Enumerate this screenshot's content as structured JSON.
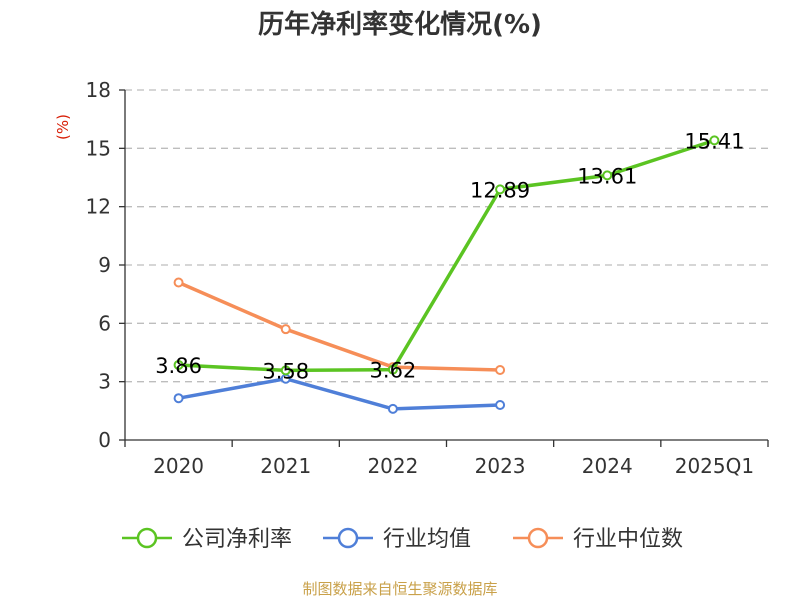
{
  "chart_data": {
    "type": "line",
    "title": "历年净利率变化情况(%)",
    "unit_label": "(%)",
    "categories": [
      "2020",
      "2021",
      "2022",
      "2023",
      "2024",
      "2025Q1"
    ],
    "ylim": [
      0,
      18
    ],
    "yticks": [
      0,
      3,
      6,
      9,
      12,
      15,
      18
    ],
    "grid": true,
    "legend_position": "bottom",
    "series": [
      {
        "name": "公司净利率",
        "color": "#5bc422",
        "values": [
          3.86,
          3.58,
          3.62,
          12.89,
          13.61,
          15.41
        ],
        "labels": [
          "3.86",
          "3.58",
          "3.62",
          "12.89",
          "13.61",
          "15.41"
        ]
      },
      {
        "name": "行业均值",
        "color": "#4f7fd8",
        "values": [
          2.15,
          3.15,
          1.6,
          1.8,
          null,
          null
        ]
      },
      {
        "name": "行业中位数",
        "color": "#f68e58",
        "values": [
          8.1,
          5.7,
          3.75,
          3.6,
          null,
          null
        ]
      }
    ],
    "unit_color": "#d81e06"
  },
  "source_text": "制图数据来自恒生聚源数据库",
  "source_color": "#c9a14a"
}
